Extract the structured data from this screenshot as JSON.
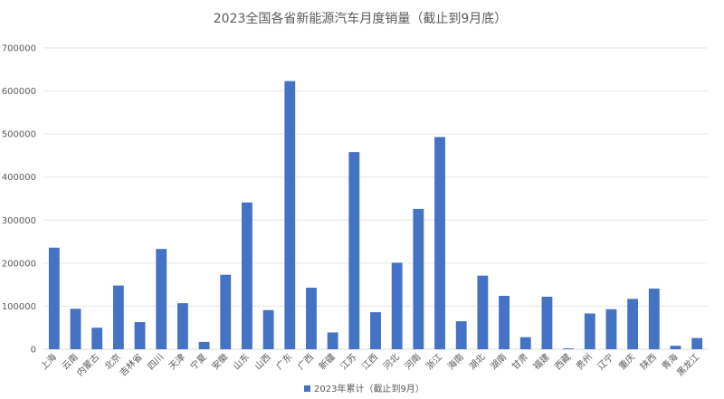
{
  "chart_data": {
    "type": "bar",
    "title": "2023全国各省新能源汽车月度销量（截止到9月底）",
    "xlabel": "",
    "ylabel": "",
    "ylim": [
      0,
      700000
    ],
    "yticks": [
      0,
      100000,
      200000,
      300000,
      400000,
      500000,
      600000,
      700000
    ],
    "grid": true,
    "legend_position": "bottom",
    "color": "#4472C4",
    "categories": [
      "上海",
      "云南",
      "内蒙古",
      "北京",
      "吉林省",
      "四川",
      "天津",
      "宁夏",
      "安徽",
      "山东",
      "山西",
      "广东",
      "广西",
      "新疆",
      "江苏",
      "江西",
      "河北",
      "河南",
      "浙江",
      "海南",
      "湖北",
      "湖南",
      "甘肃",
      "福建",
      "西藏",
      "贵州",
      "辽宁",
      "重庆",
      "陕西",
      "青海",
      "黑龙江"
    ],
    "series": [
      {
        "name": "2023年累计（截止到9月）",
        "values": [
          236000,
          94000,
          50000,
          148000,
          63000,
          233000,
          107000,
          17000,
          173000,
          341000,
          91000,
          623000,
          143000,
          39000,
          458000,
          86000,
          201000,
          326000,
          493000,
          65000,
          171000,
          124000,
          28000,
          122000,
          2000,
          83000,
          93000,
          117000,
          141000,
          8000,
          26000
        ]
      }
    ]
  }
}
